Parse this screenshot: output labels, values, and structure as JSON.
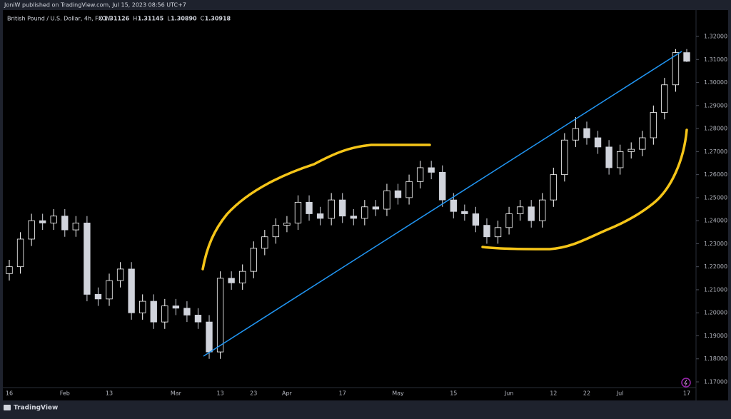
{
  "header": {
    "published": "JoniW published on TradingView.com, Jul 15, 2023 08:56 UTC+7"
  },
  "footer": {
    "brand": "TradingView"
  },
  "chart_data": {
    "type": "candlestick",
    "symbol": "British Pound / U.S. Dollar, 4h, FXCM",
    "ohlc_legend": [
      {
        "key": "O",
        "value": "1.31126"
      },
      {
        "key": "H",
        "value": "1.31145"
      },
      {
        "key": "L",
        "value": "1.30890"
      },
      {
        "key": "C",
        "value": "1.30918"
      }
    ],
    "categories": [
      "16",
      null,
      null,
      null,
      null,
      "Feb",
      null,
      null,
      null,
      "13",
      null,
      null,
      null,
      null,
      null,
      "Mar",
      null,
      null,
      null,
      "13",
      null,
      null,
      "23",
      null,
      null,
      "Apr",
      null,
      null,
      null,
      null,
      "17",
      null,
      null,
      null,
      null,
      "May",
      null,
      null,
      null,
      null,
      "15",
      null,
      null,
      null,
      null,
      "Jun",
      null,
      null,
      null,
      "12",
      null,
      null,
      "22",
      null,
      null,
      "Jul",
      null,
      null,
      null,
      null,
      null,
      "17"
    ],
    "open": [
      1.217,
      1.22,
      1.232,
      1.24,
      1.239,
      1.242,
      1.236,
      1.239,
      1.208,
      1.206,
      1.214,
      1.219,
      1.2,
      1.205,
      1.196,
      1.203,
      1.202,
      1.199,
      1.196,
      1.183,
      1.215,
      1.213,
      1.218,
      1.228,
      1.233,
      1.238,
      1.239,
      1.248,
      1.243,
      1.241,
      1.249,
      1.242,
      1.241,
      1.246,
      1.245,
      1.253,
      1.25,
      1.257,
      1.263,
      1.261,
      1.249,
      1.244,
      1.243,
      1.238,
      1.233,
      1.237,
      1.243,
      1.246,
      1.24,
      1.249,
      1.26,
      1.275,
      1.28,
      1.276,
      1.272,
      1.263,
      1.27,
      1.271,
      1.276,
      1.287,
      1.299,
      1.313
    ],
    "high": [
      1.223,
      1.235,
      1.243,
      1.243,
      1.245,
      1.245,
      1.242,
      1.242,
      1.211,
      1.217,
      1.222,
      1.222,
      1.208,
      1.208,
      1.206,
      1.206,
      1.205,
      1.202,
      1.199,
      1.218,
      1.218,
      1.221,
      1.231,
      1.236,
      1.241,
      1.242,
      1.251,
      1.251,
      1.246,
      1.252,
      1.252,
      1.245,
      1.249,
      1.249,
      1.256,
      1.256,
      1.26,
      1.266,
      1.266,
      1.264,
      1.252,
      1.247,
      1.246,
      1.241,
      1.24,
      1.246,
      1.249,
      1.249,
      1.252,
      1.263,
      1.278,
      1.285,
      1.283,
      1.279,
      1.275,
      1.273,
      1.274,
      1.279,
      1.29,
      1.302,
      1.3145,
      1.3145
    ],
    "low": [
      1.214,
      1.217,
      1.229,
      1.236,
      1.236,
      1.233,
      1.233,
      1.205,
      1.203,
      1.203,
      1.211,
      1.197,
      1.197,
      1.193,
      1.193,
      1.199,
      1.196,
      1.193,
      1.18,
      1.18,
      1.21,
      1.21,
      1.215,
      1.225,
      1.23,
      1.235,
      1.236,
      1.24,
      1.238,
      1.238,
      1.239,
      1.238,
      1.238,
      1.242,
      1.242,
      1.247,
      1.247,
      1.254,
      1.258,
      1.246,
      1.241,
      1.24,
      1.235,
      1.23,
      1.23,
      1.234,
      1.24,
      1.237,
      1.237,
      1.246,
      1.257,
      1.272,
      1.273,
      1.269,
      1.26,
      1.26,
      1.267,
      1.268,
      1.273,
      1.284,
      1.296,
      1.3089
    ],
    "close": [
      1.22,
      1.232,
      1.24,
      1.239,
      1.242,
      1.236,
      1.239,
      1.208,
      1.206,
      1.214,
      1.219,
      1.2,
      1.205,
      1.196,
      1.203,
      1.202,
      1.199,
      1.196,
      1.183,
      1.215,
      1.213,
      1.218,
      1.228,
      1.233,
      1.238,
      1.239,
      1.248,
      1.243,
      1.241,
      1.249,
      1.242,
      1.241,
      1.246,
      1.245,
      1.253,
      1.25,
      1.257,
      1.263,
      1.261,
      1.249,
      1.244,
      1.243,
      1.238,
      1.233,
      1.237,
      1.243,
      1.246,
      1.24,
      1.249,
      1.26,
      1.275,
      1.28,
      1.276,
      1.272,
      1.263,
      1.27,
      1.271,
      1.276,
      1.287,
      1.299,
      1.313,
      1.3092
    ],
    "up_color": "#ffffff",
    "down_color": "#d1d4dc",
    "ylim": [
      1.1669,
      1.3321
    ],
    "yticks": [
      {
        "value": 1.17,
        "label": "1.17000"
      },
      {
        "value": 1.18,
        "label": "1.18000"
      },
      {
        "value": 1.19,
        "label": "1.19000"
      },
      {
        "value": 1.2,
        "label": "1.20000"
      },
      {
        "value": 1.21,
        "label": "1.21000"
      },
      {
        "value": 1.22,
        "label": "1.22000"
      },
      {
        "value": 1.23,
        "label": "1.23000"
      },
      {
        "value": 1.24,
        "label": "1.24000"
      },
      {
        "value": 1.25,
        "label": "1.25000"
      },
      {
        "value": 1.26,
        "label": "1.26000"
      },
      {
        "value": 1.27,
        "label": "1.27000"
      },
      {
        "value": 1.28,
        "label": "1.28000"
      },
      {
        "value": 1.29,
        "label": "1.29000"
      },
      {
        "value": 1.3,
        "label": "1.30000"
      },
      {
        "value": 1.31,
        "label": "1.31000"
      },
      {
        "value": 1.32,
        "label": "1.32000"
      }
    ],
    "grid": false
  }
}
